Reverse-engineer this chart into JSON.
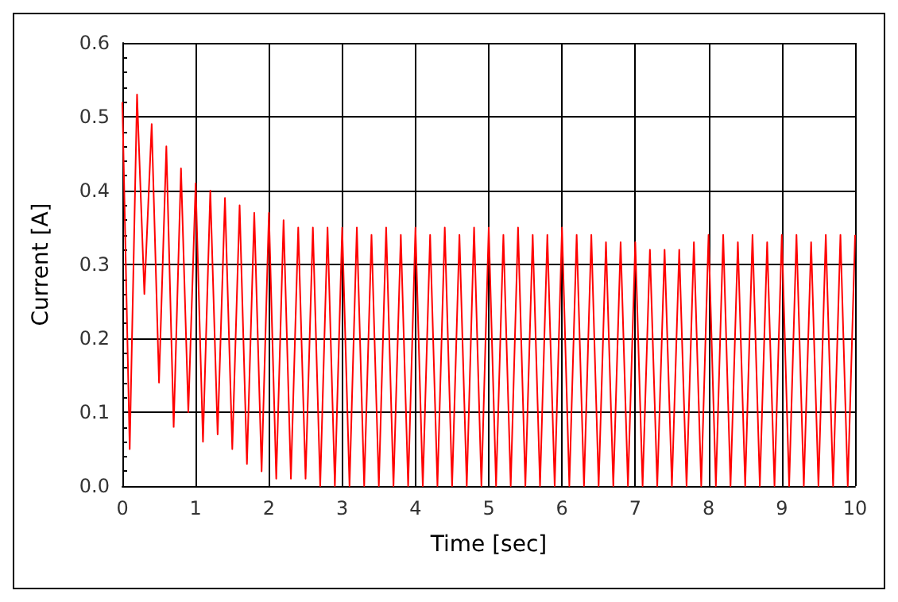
{
  "chart_data": {
    "type": "line",
    "xlabel": "Time [sec]",
    "ylabel": "Current [A]",
    "x": [
      0,
      0.1,
      0.2,
      0.3,
      0.4,
      0.5,
      0.6,
      0.7,
      0.8,
      0.9,
      1,
      1.1,
      1.2,
      1.3,
      1.4,
      1.5,
      1.6,
      1.7,
      1.8,
      1.9,
      2,
      2.1,
      2.2,
      2.3,
      2.4,
      2.5,
      2.6,
      2.7,
      2.8,
      2.9,
      3,
      3.1,
      3.2,
      3.3,
      3.4,
      3.5,
      3.6,
      3.7,
      3.8,
      3.9,
      4,
      4.1,
      4.2,
      4.3,
      4.4,
      4.5,
      4.6,
      4.7,
      4.8,
      4.9,
      5,
      5.1,
      5.2,
      5.3,
      5.4,
      5.5,
      5.6,
      5.7,
      5.8,
      5.9,
      6,
      6.1,
      6.2,
      6.3,
      6.4,
      6.5,
      6.6,
      6.7,
      6.8,
      6.9,
      7,
      7.1,
      7.2,
      7.3,
      7.4,
      7.5,
      7.6,
      7.7,
      7.8,
      7.9,
      8,
      8.1,
      8.2,
      8.3,
      8.4,
      8.5,
      8.6,
      8.7,
      8.8,
      8.9,
      9,
      9.1,
      9.2,
      9.3,
      9.4,
      9.5,
      9.6,
      9.7,
      9.8,
      9.9,
      10
    ],
    "series": [
      {
        "color": "#ff0000",
        "values": [
          0.52,
          0.05,
          0.53,
          0.26,
          0.49,
          0.14,
          0.46,
          0.08,
          0.43,
          0.1,
          0.41,
          0.06,
          0.4,
          0.07,
          0.39,
          0.05,
          0.38,
          0.03,
          0.37,
          0.02,
          0.37,
          0.01,
          0.36,
          0.01,
          0.35,
          0.01,
          0.35,
          0,
          0.35,
          0,
          0.35,
          0,
          0.35,
          0,
          0.34,
          0,
          0.35,
          0,
          0.34,
          0,
          0.35,
          0,
          0.34,
          0,
          0.35,
          0,
          0.34,
          0,
          0.35,
          0,
          0.35,
          0,
          0.34,
          0,
          0.35,
          0,
          0.34,
          0,
          0.34,
          0,
          0.35,
          0,
          0.34,
          0,
          0.34,
          0,
          0.33,
          0,
          0.33,
          0,
          0.33,
          0,
          0.32,
          0,
          0.32,
          0,
          0.32,
          0,
          0.33,
          0,
          0.34,
          0,
          0.34,
          0,
          0.33,
          0,
          0.34,
          0,
          0.33,
          0,
          0.34,
          0,
          0.34,
          0,
          0.33,
          0,
          0.34,
          0,
          0.34,
          0,
          0.34
        ]
      }
    ],
    "xlim": [
      0,
      10
    ],
    "xticks": [
      0,
      1,
      2,
      3,
      4,
      5,
      6,
      7,
      8,
      9,
      10
    ],
    "ylim": [
      0,
      0.6
    ],
    "yticks": [
      {
        "value": 0,
        "label": "0.0"
      },
      0.1,
      0.2,
      0.3,
      0.4,
      0.5,
      0.6
    ],
    "grid": true,
    "marker": "none",
    "line_style": "solid"
  }
}
